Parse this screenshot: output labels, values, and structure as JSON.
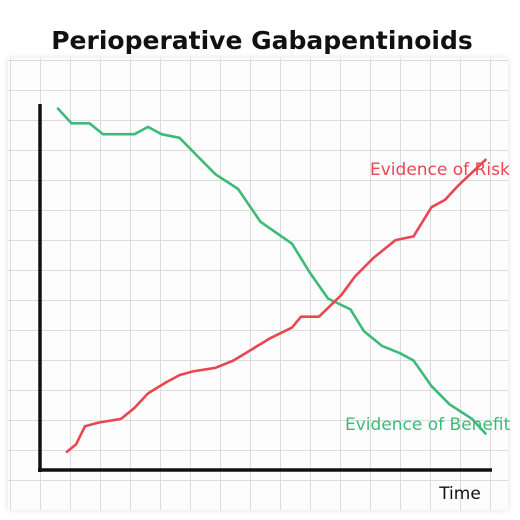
{
  "chart_data": {
    "type": "line",
    "title": "Perioperative Gabapentinoids",
    "x_label": "Time",
    "xlim": [
      0,
      100
    ],
    "ylim": [
      0,
      100
    ],
    "series": [
      {
        "name": "Evidence of Benefit",
        "color": "#3dba78",
        "x": [
          4,
          7,
          11,
          14,
          21,
          24,
          27,
          31,
          35,
          39,
          44,
          49,
          56,
          60,
          64,
          69,
          72,
          76,
          80,
          83,
          87,
          91,
          96,
          99
        ],
        "values": [
          99,
          95,
          95,
          92,
          92,
          94,
          92,
          91,
          86,
          81,
          77,
          68,
          62,
          54,
          47,
          44,
          38,
          34,
          32,
          30,
          23,
          18,
          14,
          10
        ]
      },
      {
        "name": "Evidence of Risk",
        "color": "#e8474f",
        "x": [
          6,
          8,
          10,
          13,
          18,
          21,
          24,
          28,
          31,
          34,
          39,
          43,
          47,
          51,
          56,
          58,
          62,
          67,
          70,
          74,
          79,
          83,
          87,
          90,
          93,
          99
        ],
        "values": [
          5,
          7,
          12,
          13,
          14,
          17,
          21,
          24,
          26,
          27,
          28,
          30,
          33,
          36,
          39,
          42,
          42,
          48,
          53,
          58,
          63,
          64,
          72,
          74,
          78,
          85
        ]
      }
    ]
  }
}
